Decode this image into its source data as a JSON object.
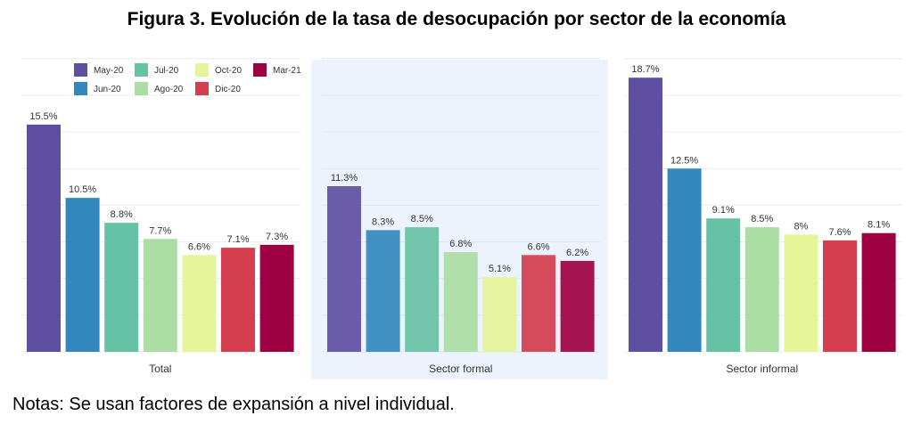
{
  "title": "Figura 3. Evolución de la tasa de desocupación por sector de la economía",
  "note": "Notas: Se usan factores de expansión a nivel individual.",
  "chart_data": {
    "type": "bar",
    "title": "Figura 3. Evolución de la tasa de desocupación por sector de la economía",
    "xlabel": "",
    "ylabel": "",
    "ylim": [
      0,
      20
    ],
    "grid": true,
    "grid_step": 2.5,
    "legend_position": "top-left",
    "categories": [
      "May-20",
      "Jun-20",
      "Jul-20",
      "Ago-20",
      "Oct-20",
      "Dic-20",
      "Mar-21"
    ],
    "colors": [
      "#5e4fa2",
      "#3288bd",
      "#66c2a5",
      "#abdda4",
      "#e6f598",
      "#d53e4f",
      "#9e0142"
    ],
    "panels": [
      {
        "name": "Total",
        "highlighted": false,
        "values": [
          15.5,
          10.5,
          8.8,
          7.7,
          6.6,
          7.1,
          7.3
        ],
        "labels": [
          "15.5%",
          "10.5%",
          "8.8%",
          "7.7%",
          "6.6%",
          "7.1%",
          "7.3%"
        ]
      },
      {
        "name": "Sector formal",
        "highlighted": true,
        "values": [
          11.3,
          8.3,
          8.5,
          6.8,
          5.1,
          6.6,
          6.2
        ],
        "labels": [
          "11.3%",
          "8.3%",
          "8.5%",
          "6.8%",
          "5.1%",
          "6.6%",
          "6.2%"
        ]
      },
      {
        "name": "Sector informal",
        "highlighted": false,
        "values": [
          18.7,
          12.5,
          9.1,
          8.5,
          8.0,
          7.6,
          8.1
        ],
        "labels": [
          "18.7%",
          "12.5%",
          "9.1%",
          "8.5%",
          "8%",
          "7.6%",
          "8.1%"
        ]
      }
    ],
    "legend": [
      {
        "label": "May-20",
        "color": "#5e4fa2"
      },
      {
        "label": "Jun-20",
        "color": "#3288bd"
      },
      {
        "label": "Jul-20",
        "color": "#66c2a5"
      },
      {
        "label": "Ago-20",
        "color": "#abdda4"
      },
      {
        "label": "Oct-20",
        "color": "#e6f598"
      },
      {
        "label": "Dic-20",
        "color": "#d53e4f"
      },
      {
        "label": "Mar-21",
        "color": "#9e0142"
      }
    ]
  }
}
